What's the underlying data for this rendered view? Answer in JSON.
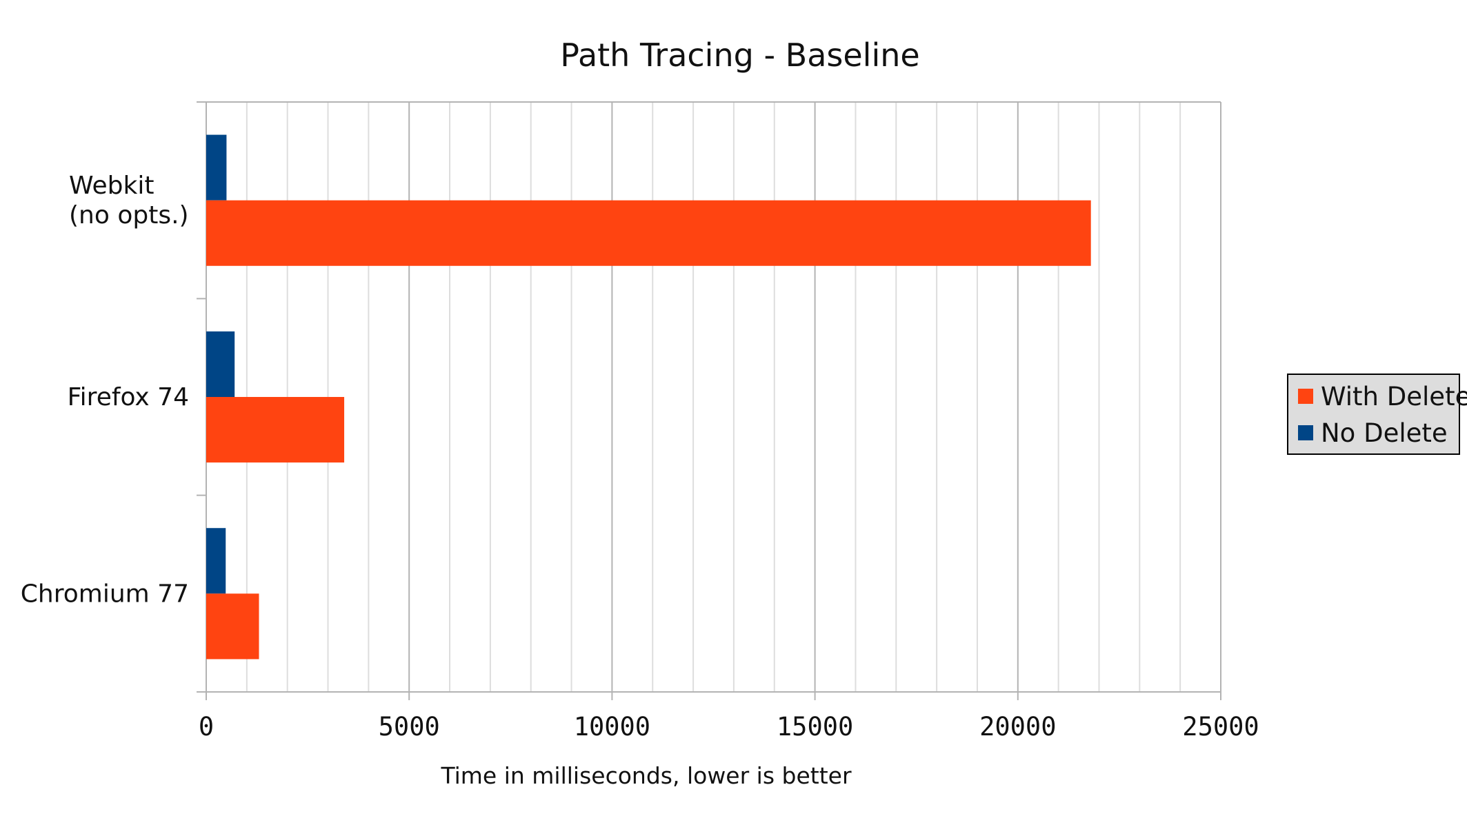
{
  "chart_data": {
    "type": "bar",
    "orientation": "horizontal",
    "title": "Path Tracing - Baseline",
    "xlabel": "Time in milliseconds, lower is better",
    "ylabel": "",
    "categories": [
      [
        "Webkit",
        "(no opts.)"
      ],
      [
        "Firefox 74"
      ],
      [
        "Chromium 77"
      ]
    ],
    "series": [
      {
        "name": "With Delete",
        "color": "#ff4411",
        "values": [
          21800,
          3400,
          1300
        ]
      },
      {
        "name": "No Delete",
        "color": "#004586",
        "values": [
          500,
          700,
          480
        ]
      }
    ],
    "xlim": [
      0,
      25000
    ],
    "xticks": [
      0,
      5000,
      10000,
      15000,
      20000,
      25000
    ],
    "minor_tick_step": 1000,
    "grid": true,
    "legend_position": "right",
    "legend_order": [
      "With Delete",
      "No Delete"
    ]
  }
}
